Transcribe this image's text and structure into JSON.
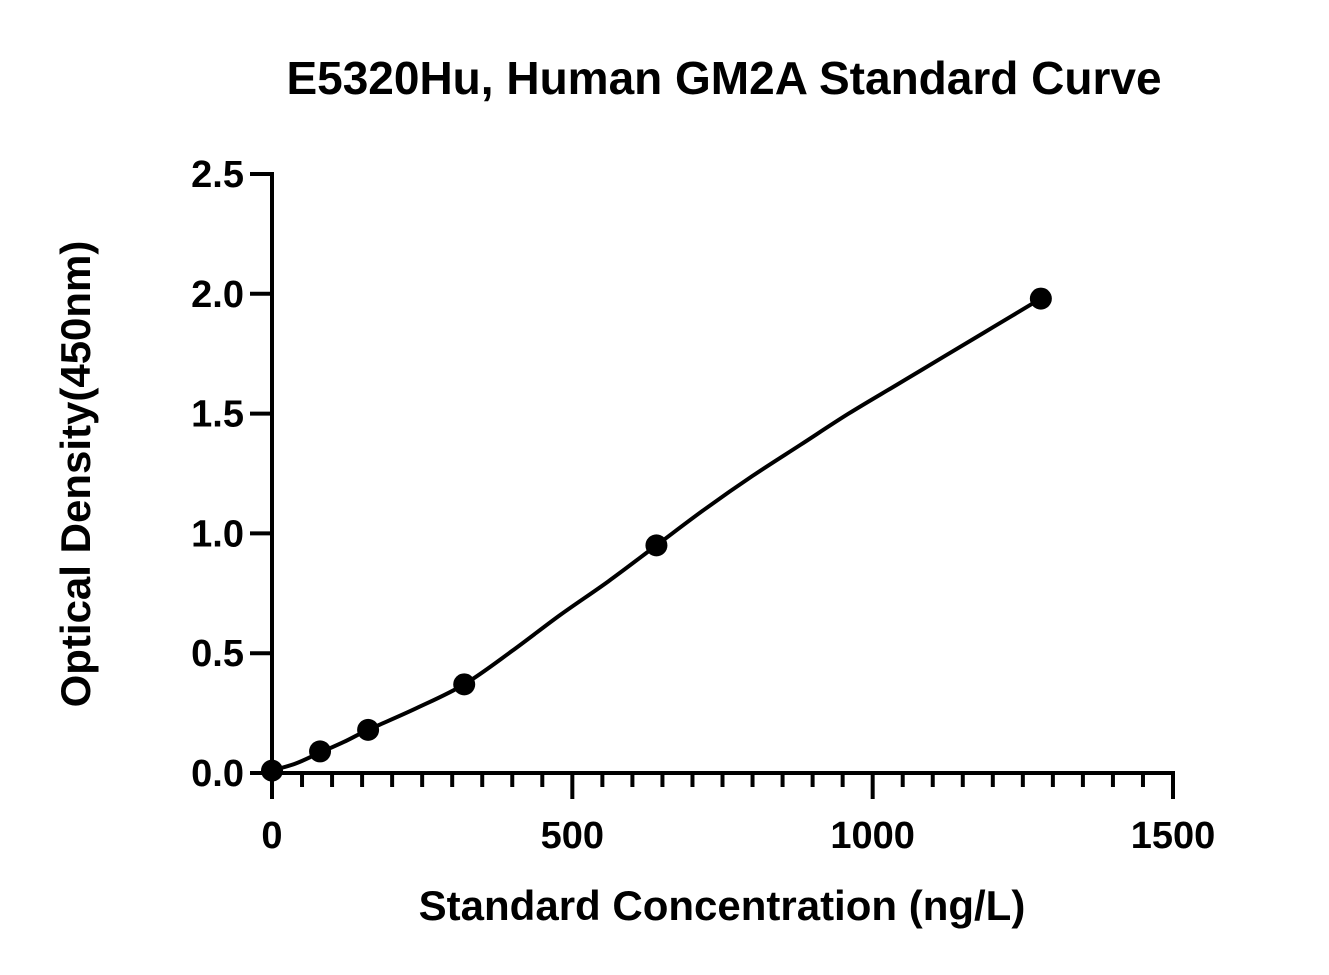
{
  "chart_data": {
    "type": "scatter",
    "title": "E5320Hu, Human GM2A Standard Curve",
    "xlabel": "Standard Concentration (ng/L)",
    "ylabel": "Optical Density(450nm)",
    "xlim": [
      0,
      1500
    ],
    "ylim": [
      0,
      2.5
    ],
    "x_major_ticks": [
      0,
      500,
      1000,
      1500
    ],
    "x_tick_labels": [
      "0",
      "500",
      "1000",
      "1500"
    ],
    "x_minor_step": 50,
    "y_major_ticks": [
      0,
      0.5,
      1.0,
      1.5,
      2.0,
      2.5
    ],
    "y_tick_labels": [
      "0.0",
      "0.5",
      "1.0",
      "1.5",
      "2.0",
      "2.5"
    ],
    "grid": false,
    "legend": "none",
    "series": [
      {
        "marker": "circle",
        "color": "#000000",
        "x": [
          0,
          80,
          160,
          320,
          640,
          1280
        ],
        "y": [
          0.01,
          0.09,
          0.18,
          0.37,
          0.95,
          1.98
        ]
      }
    ],
    "fit_curve": {
      "color": "#000000",
      "x": [
        0,
        40,
        80,
        120,
        160,
        240,
        320,
        400,
        480,
        560,
        640,
        720,
        800,
        880,
        960,
        1040,
        1120,
        1200,
        1280
      ],
      "y": [
        0.01,
        0.04,
        0.085,
        0.13,
        0.18,
        0.27,
        0.37,
        0.51,
        0.66,
        0.8,
        0.95,
        1.1,
        1.24,
        1.37,
        1.5,
        1.62,
        1.74,
        1.86,
        1.98
      ]
    }
  }
}
